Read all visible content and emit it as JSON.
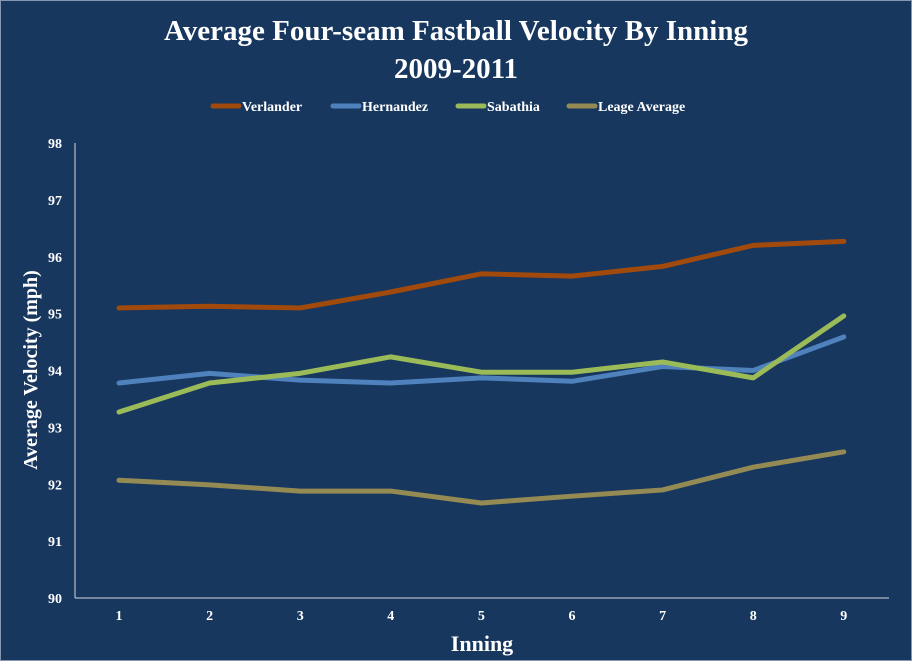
{
  "chart_data": {
    "type": "line",
    "title": "Average Four-seam Fastball Velocity By Inning",
    "subtitle": "2009-2011",
    "xlabel": "Inning",
    "ylabel": "Average Velocity (mph)",
    "categories": [
      "1",
      "2",
      "3",
      "4",
      "5",
      "6",
      "7",
      "8",
      "9"
    ],
    "ylim": [
      90,
      98
    ],
    "yticks": [
      "90",
      "91",
      "92",
      "93",
      "94",
      "95",
      "96",
      "97",
      "98"
    ],
    "grid": false,
    "legend_position": "top",
    "series": [
      {
        "name": "Verlander",
        "color": "#a24a0c",
        "values": [
          95.1,
          95.13,
          95.1,
          95.38,
          95.7,
          95.66,
          95.83,
          96.2,
          96.27
        ]
      },
      {
        "name": "Hernandez",
        "color": "#4f81bd",
        "values": [
          93.78,
          93.95,
          93.83,
          93.78,
          93.87,
          93.81,
          94.07,
          94.0,
          94.59
        ]
      },
      {
        "name": "Sabathia",
        "color": "#9bbb59",
        "values": [
          93.27,
          93.78,
          93.95,
          94.24,
          93.97,
          93.97,
          94.15,
          93.87,
          94.96
        ]
      },
      {
        "name": "Leage Average",
        "color": "#948a54",
        "values": [
          92.07,
          91.99,
          91.88,
          91.88,
          91.67,
          91.79,
          91.9,
          92.3,
          92.57
        ]
      }
    ]
  }
}
